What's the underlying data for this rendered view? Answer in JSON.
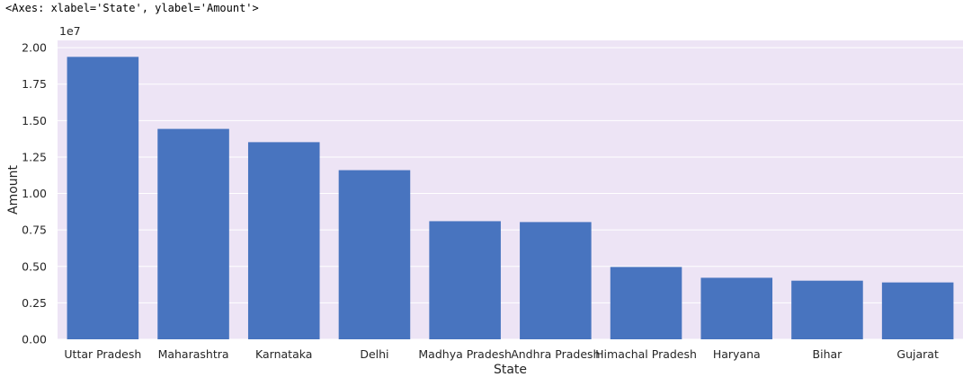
{
  "output": {
    "repr_text": "<Axes: xlabel='State', ylabel='Amount'>"
  },
  "chart_data": {
    "type": "bar",
    "categories": [
      "Uttar Pradesh",
      "Maharashtra",
      "Karnataka",
      "Delhi",
      "Madhya Pradesh",
      "Andhra Pradesh",
      "Himachal Pradesh",
      "Haryana",
      "Bihar",
      "Gujarat"
    ],
    "values": [
      19370000,
      14430000,
      13520000,
      11600000,
      8100000,
      8040000,
      4960000,
      4220000,
      4020000,
      3900000
    ],
    "xlabel": "State",
    "ylabel": "Amount",
    "ylim": [
      0,
      20500000
    ],
    "yticks": [
      0,
      2500000,
      5000000,
      7500000,
      10000000,
      12500000,
      15000000,
      17500000,
      20000000
    ],
    "ytick_labels": [
      "0.00",
      "0.25",
      "0.50",
      "0.75",
      "1.00",
      "1.25",
      "1.50",
      "1.75",
      "2.00"
    ],
    "offset_label": "1e7",
    "grid": true,
    "colors": {
      "bar": "#4874bf",
      "plot_background": "#ede4f5",
      "grid": "#ffffff",
      "text": "#262626"
    }
  }
}
